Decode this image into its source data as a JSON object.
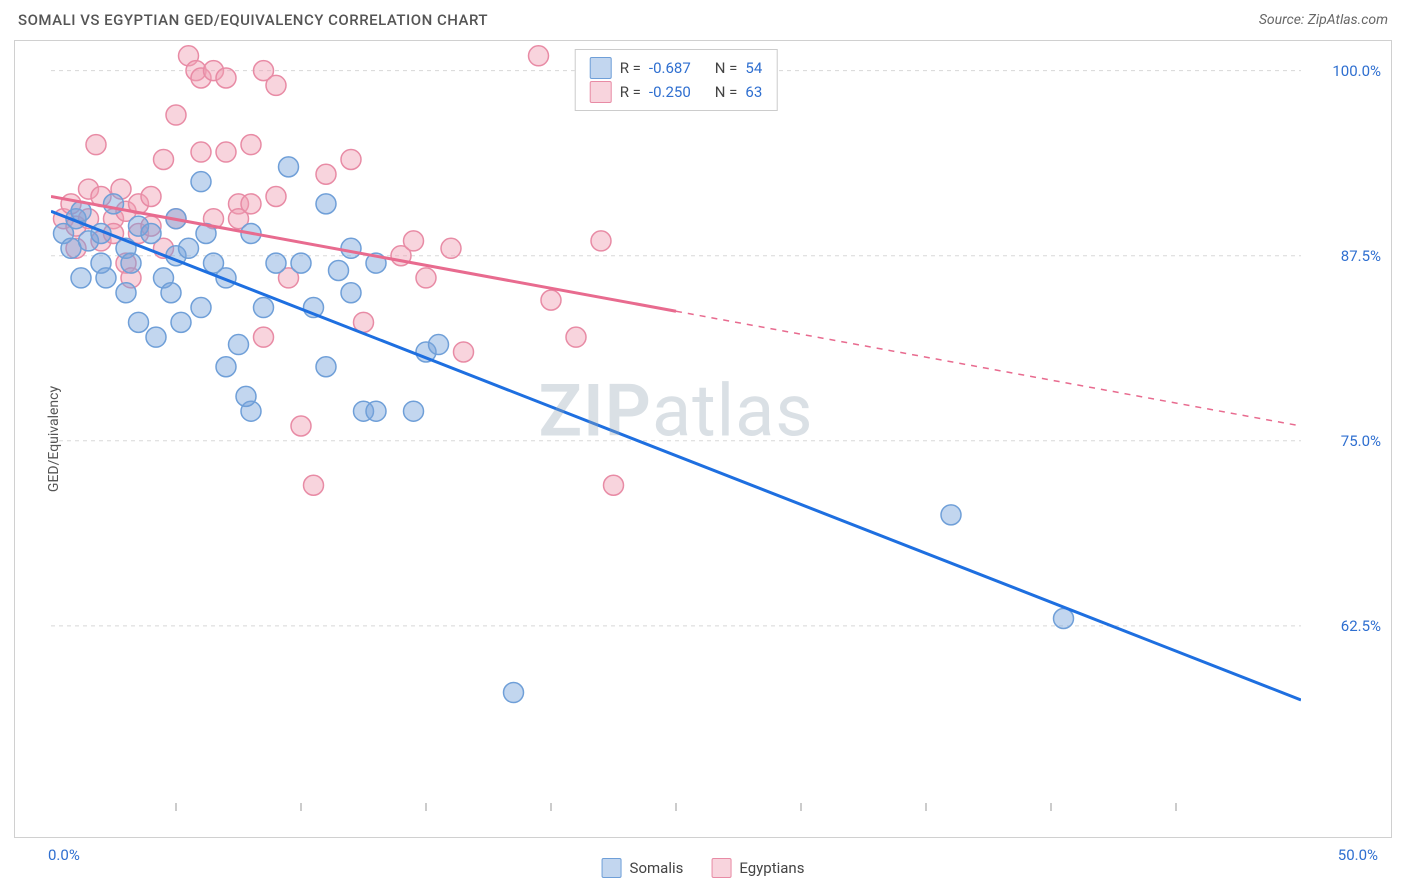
{
  "title": "SOMALI VS EGYPTIAN GED/EQUIVALENCY CORRELATION CHART",
  "source": "Source: ZipAtlas.com",
  "watermark_a": "ZIP",
  "watermark_b": "atlas",
  "ylabel": "GED/Equivalency",
  "xlim": [
    0,
    50
  ],
  "ylim": [
    50,
    102
  ],
  "xticks": [
    0,
    50
  ],
  "xtick_labels": [
    "0.0%",
    "50.0%"
  ],
  "yticks": [
    62.5,
    75,
    87.5,
    100
  ],
  "ytick_labels": [
    "62.5%",
    "75.0%",
    "87.5%",
    "100.0%"
  ],
  "grid_color": "#d8d8d8",
  "axis_tick_color": "#999",
  "series": {
    "somalis": {
      "label": "Somalis",
      "fill": "rgba(120,165,220,0.45)",
      "stroke": "#6f9fd8",
      "line_color": "#1e6fe0",
      "r_value": "-0.687",
      "n_value": "54",
      "trend": {
        "x1": 0,
        "y1": 90.5,
        "x2": 50,
        "y2": 57.5,
        "solid_until_x": 50
      },
      "points": [
        [
          0.5,
          89
        ],
        [
          0.8,
          88
        ],
        [
          1,
          90
        ],
        [
          1.2,
          86
        ],
        [
          1.5,
          88.5
        ],
        [
          1.2,
          90.5
        ],
        [
          2,
          89
        ],
        [
          2,
          87
        ],
        [
          2.5,
          91
        ],
        [
          2.2,
          86
        ],
        [
          3,
          88
        ],
        [
          3,
          85
        ],
        [
          3.5,
          89.5
        ],
        [
          3.2,
          87
        ],
        [
          4,
          89
        ],
        [
          3.5,
          83
        ],
        [
          4.5,
          86
        ],
        [
          4.2,
          82
        ],
        [
          5,
          90
        ],
        [
          5,
          87.5
        ],
        [
          4.8,
          85
        ],
        [
          5.5,
          88
        ],
        [
          5.2,
          83
        ],
        [
          6,
          92.5
        ],
        [
          6,
          84
        ],
        [
          6.5,
          87
        ],
        [
          6.2,
          89
        ],
        [
          7,
          86
        ],
        [
          7,
          80
        ],
        [
          7.5,
          81.5
        ],
        [
          8,
          89
        ],
        [
          8.5,
          84
        ],
        [
          8,
          77
        ],
        [
          7.8,
          78
        ],
        [
          9,
          87
        ],
        [
          10,
          87
        ],
        [
          9.5,
          93.5
        ],
        [
          10.5,
          84
        ],
        [
          11,
          80
        ],
        [
          11,
          91
        ],
        [
          11.5,
          86.5
        ],
        [
          12,
          85
        ],
        [
          12,
          88
        ],
        [
          12.5,
          77
        ],
        [
          13,
          87
        ],
        [
          13,
          77
        ],
        [
          14.5,
          77
        ],
        [
          15,
          81
        ],
        [
          15.5,
          81.5
        ],
        [
          18.5,
          58
        ],
        [
          36,
          70
        ],
        [
          40.5,
          63
        ]
      ]
    },
    "egyptians": {
      "label": "Egyptians",
      "fill": "rgba(240,160,180,0.45)",
      "stroke": "#e88ba5",
      "line_color": "#e86b8f",
      "r_value": "-0.250",
      "n_value": "63",
      "trend": {
        "x1": 0,
        "y1": 91.5,
        "x2": 50,
        "y2": 76,
        "solid_until_x": 25
      },
      "points": [
        [
          0.5,
          90
        ],
        [
          0.8,
          91
        ],
        [
          1,
          89.5
        ],
        [
          1,
          88
        ],
        [
          1.5,
          90
        ],
        [
          1.5,
          92
        ],
        [
          1.8,
          95
        ],
        [
          2,
          91.5
        ],
        [
          2,
          88.5
        ],
        [
          2.5,
          90
        ],
        [
          2.5,
          89
        ],
        [
          2.8,
          92
        ],
        [
          3,
          90.5
        ],
        [
          3,
          87
        ],
        [
          3.5,
          89
        ],
        [
          3.5,
          91
        ],
        [
          3.2,
          86
        ],
        [
          4,
          89.5
        ],
        [
          4,
          91.5
        ],
        [
          4.5,
          94
        ],
        [
          4.5,
          88
        ],
        [
          5,
          90
        ],
        [
          5,
          97
        ],
        [
          5.5,
          101
        ],
        [
          5.8,
          100
        ],
        [
          6,
          99.5
        ],
        [
          6.5,
          100
        ],
        [
          6,
          94.5
        ],
        [
          6.5,
          90
        ],
        [
          7,
          99.5
        ],
        [
          7,
          94.5
        ],
        [
          7.5,
          91
        ],
        [
          7.5,
          90
        ],
        [
          8,
          95
        ],
        [
          8,
          91
        ],
        [
          8.5,
          100
        ],
        [
          9,
          99
        ],
        [
          9,
          91.5
        ],
        [
          9.5,
          86
        ],
        [
          8.5,
          82
        ],
        [
          10,
          76
        ],
        [
          10.5,
          72
        ],
        [
          11,
          93
        ],
        [
          12,
          94
        ],
        [
          12.5,
          83
        ],
        [
          14,
          87.5
        ],
        [
          14.5,
          88.5
        ],
        [
          15,
          86
        ],
        [
          16,
          88
        ],
        [
          16.5,
          81
        ],
        [
          19.5,
          101
        ],
        [
          20,
          84.5
        ],
        [
          21,
          82
        ],
        [
          22,
          88.5
        ],
        [
          22.5,
          72
        ]
      ]
    }
  },
  "stat_prefix_r": "R = ",
  "stat_prefix_n": "N = "
}
